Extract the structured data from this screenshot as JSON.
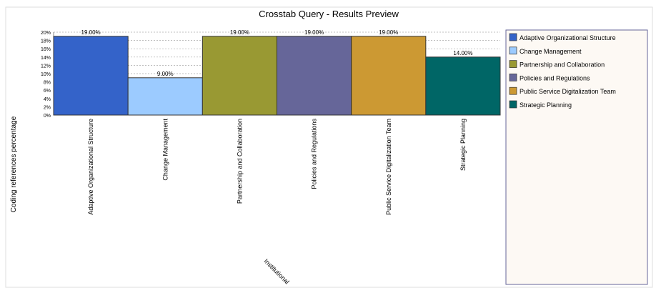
{
  "chart_data": {
    "type": "bar",
    "title": "Crosstab Query - Results Preview",
    "x_label": "Institutional",
    "y_label": "Coding references percentage",
    "categories": [
      "Adaptive Organizational Structure",
      "Change Management",
      "Partnership and Collaboration",
      "Policies and Regulations",
      "Public Service Digitalization Team",
      "Strategic Planning"
    ],
    "values": [
      19,
      9,
      19,
      19,
      19,
      14
    ],
    "value_labels": [
      "19.00%",
      "9.00%",
      "19.00%",
      "19.00%",
      "19.00%",
      "14.00%"
    ],
    "colors": [
      "#3463c9",
      "#9ccbff",
      "#999933",
      "#666699",
      "#cc9933",
      "#006666"
    ],
    "ylim": [
      0,
      20
    ],
    "yticks": [
      {
        "value": 0,
        "label": "0%"
      },
      {
        "value": 2,
        "label": "2%"
      },
      {
        "value": 4,
        "label": "4%"
      },
      {
        "value": 6,
        "label": "6%"
      },
      {
        "value": 8,
        "label": "8%"
      },
      {
        "value": 10,
        "label": "10%"
      },
      {
        "value": 12,
        "label": "12%"
      },
      {
        "value": 14,
        "label": "14%"
      },
      {
        "value": 16,
        "label": "16%"
      },
      {
        "value": 18,
        "label": "18%"
      },
      {
        "value": 20,
        "label": "20%"
      }
    ],
    "grid": true,
    "legend": "right"
  }
}
